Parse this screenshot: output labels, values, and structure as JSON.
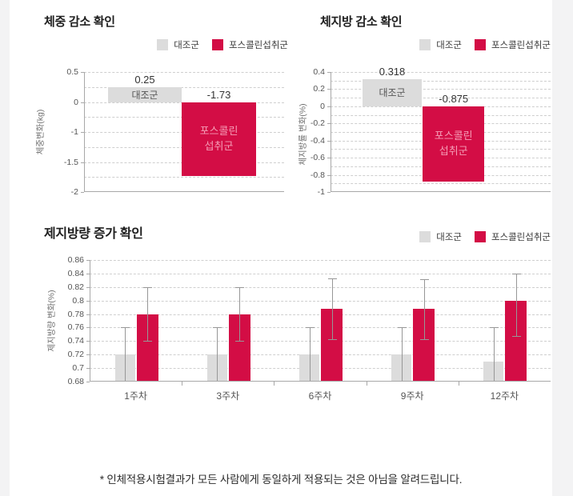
{
  "page": {
    "disclaimer": "* 인체적용시험결과가 모든 사람에게 동일하게 적용되는 것은 아님을 알려드립니다."
  },
  "colors": {
    "control": "#dcdcdc",
    "forskolin": "#d30d45",
    "bar_inner_light_text": "#f59db6",
    "bar_inner_dark_text": "#555555",
    "grid": "#cfcfcf",
    "axis": "#a8a8a8",
    "error_bar": "#979797"
  },
  "legend": {
    "control_label": "대조군",
    "forskolin_label": "포스콜린섭취군"
  },
  "chart_data": [
    {
      "id": "weight-change",
      "type": "bar",
      "title": "체중 감소 확인",
      "ylabel": "체중변화(kg)",
      "yticks": [
        0.5,
        0,
        -1,
        -1.5,
        -2
      ],
      "grid": "dashed horizontal at ticks and midpoints",
      "legend_position": "top-right",
      "series": [
        {
          "name": "대조군",
          "value": 0.25,
          "value_label": "0.25",
          "bar_label_lines": [
            "대조군"
          ],
          "color_key": "control"
        },
        {
          "name": "포스콜린섭취군",
          "value": -1.73,
          "value_label": "-1.73",
          "bar_label_lines": [
            "포스콜린",
            "섭취군"
          ],
          "color_key": "forskolin"
        }
      ]
    },
    {
      "id": "bodyfat-change",
      "type": "bar",
      "title": "체지방 감소 확인",
      "ylabel": "체지방률 변화(%)",
      "yticks": [
        0.4,
        0.2,
        0,
        -0.2,
        -0.4,
        -0.6,
        -0.8,
        -1
      ],
      "grid": "dashed horizontal at ticks and midpoints",
      "legend_position": "top-right",
      "series": [
        {
          "name": "대조군",
          "value": 0.318,
          "value_label": "0.318",
          "bar_label_lines": [
            "대조군"
          ],
          "color_key": "control"
        },
        {
          "name": "포스콜린섭취군",
          "value": -0.875,
          "value_label": "-0.875",
          "bar_label_lines": [
            "포스콜린",
            "섭취군"
          ],
          "color_key": "forskolin"
        }
      ]
    },
    {
      "id": "lean-mass-change",
      "type": "grouped-bar-with-error",
      "title": "제지방량 증가 확인",
      "ylabel": "제지방량 변화(%)",
      "ylim": [
        0.68,
        0.86
      ],
      "yticks": [
        0.86,
        0.84,
        0.82,
        0.8,
        0.78,
        0.76,
        0.74,
        0.72,
        0.7,
        0.68
      ],
      "grid": "dashed horizontal at ticks",
      "legend_position": "top-right",
      "categories": [
        "1주차",
        "3주차",
        "6주차",
        "9주차",
        "12주차"
      ],
      "series": [
        {
          "name": "대조군",
          "color_key": "control",
          "values": [
            0.72,
            0.72,
            0.72,
            0.72,
            0.71
          ],
          "error_low": [
            0.68,
            0.68,
            0.68,
            0.68,
            0.68
          ],
          "error_high": [
            0.76,
            0.76,
            0.76,
            0.76,
            0.76
          ],
          "error_caps": "top"
        },
        {
          "name": "포스콜린섭취군",
          "color_key": "forskolin",
          "values": [
            0.78,
            0.78,
            0.788,
            0.788,
            0.8
          ],
          "error_low": [
            0.74,
            0.74,
            0.743,
            0.743,
            0.748
          ],
          "error_high": [
            0.82,
            0.82,
            0.833,
            0.832,
            0.84
          ],
          "error_caps": "both"
        }
      ]
    }
  ]
}
